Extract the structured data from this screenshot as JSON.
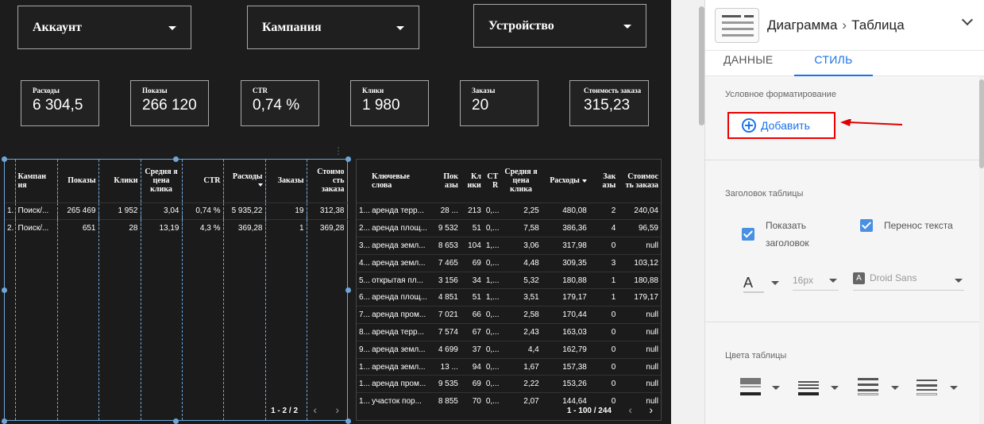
{
  "filters": [
    {
      "label": "Аккаунт"
    },
    {
      "label": "Кампания"
    },
    {
      "label": "Устройство"
    }
  ],
  "scorecards": [
    {
      "label": "Расходы",
      "value": "6 304,5"
    },
    {
      "label": "Показы",
      "value": "266 120"
    },
    {
      "label": "CTR",
      "value": "0,74 %"
    },
    {
      "label": "Клики",
      "value": "1 980"
    },
    {
      "label": "Заказы",
      "value": "20"
    },
    {
      "label": "Стоимость заказа",
      "value": "315,23"
    }
  ],
  "table1": {
    "headers": [
      "",
      "Кампан ия",
      "Показы",
      "Клики",
      "Средня я цена клика",
      "CTR",
      "Расходы",
      "Заказы",
      "Стоимо сть заказа"
    ],
    "rows": [
      [
        "1.",
        "Поиск/...",
        "265 469",
        "1 952",
        "3,04",
        "0,74 %",
        "5 935,22",
        "19",
        "312,38"
      ],
      [
        "2.",
        "Поиск/...",
        "651",
        "28",
        "13,19",
        "4,3 %",
        "369,28",
        "1",
        "369,28"
      ]
    ],
    "pagination": "1 - 2 / 2"
  },
  "table2": {
    "headers": [
      "",
      "Ключевые слова",
      "Пок азы",
      "Кл ики",
      "CT R",
      "Средня я цена клика",
      "Расходы",
      "Зак азы",
      "Стоимос ть заказа"
    ],
    "rows": [
      [
        "1...",
        "аренда терр...",
        "28 ...",
        "213",
        "0,...",
        "2,25",
        "480,08",
        "2",
        "240,04"
      ],
      [
        "2...",
        "аренда площ...",
        "9 532",
        "51",
        "0,...",
        "7,58",
        "386,36",
        "4",
        "96,59"
      ],
      [
        "3...",
        "аренда земл...",
        "8 653",
        "104",
        "1,...",
        "3,06",
        "317,98",
        "0",
        "null"
      ],
      [
        "4...",
        "аренда земл...",
        "7 465",
        "69",
        "0,...",
        "4,48",
        "309,35",
        "3",
        "103,12"
      ],
      [
        "5...",
        "открытая пл...",
        "3 156",
        "34",
        "1,...",
        "5,32",
        "180,88",
        "1",
        "180,88"
      ],
      [
        "6...",
        "аренда площ...",
        "4 851",
        "51",
        "1,...",
        "3,51",
        "179,17",
        "1",
        "179,17"
      ],
      [
        "7...",
        "аренда пром...",
        "7 021",
        "66",
        "0,...",
        "2,58",
        "170,44",
        "0",
        "null"
      ],
      [
        "8...",
        "аренда терр...",
        "7 574",
        "67",
        "0,...",
        "2,43",
        "163,03",
        "0",
        "null"
      ],
      [
        "9...",
        "аренда земл...",
        "4 699",
        "37",
        "0,...",
        "4,4",
        "162,79",
        "0",
        "null"
      ],
      [
        "1...",
        "аренда земл...",
        "13 ...",
        "94",
        "0,...",
        "1,67",
        "157,38",
        "0",
        "null"
      ],
      [
        "1...",
        "аренда пром...",
        "9 535",
        "69",
        "0,...",
        "2,22",
        "153,26",
        "0",
        "null"
      ],
      [
        "1...",
        "участок пор...",
        "8 855",
        "70",
        "0,...",
        "2,07",
        "144,64",
        "0",
        "null"
      ]
    ],
    "pagination": "1 - 100 / 244"
  },
  "panel": {
    "breadcrumb_type": "Диаграмма",
    "breadcrumb_sub": "Таблица",
    "tabs": [
      "ДАННЫЕ",
      "СТИЛЬ"
    ],
    "active_tab": "СТИЛЬ",
    "conditional_formatting": "Условное форматирование",
    "add_label": "Добавить",
    "table_header_title": "Заголовок таблицы",
    "show_header_label": "Показать заголовок",
    "show_header_checked": true,
    "wrap_text_label": "Перенос текста",
    "wrap_text_checked": true,
    "font_size": "16px",
    "font_family": "Droid Sans",
    "table_colors_title": "Цвета таблицы",
    "accent_color": "#1a73e8",
    "highlight_color": "#e00000"
  }
}
